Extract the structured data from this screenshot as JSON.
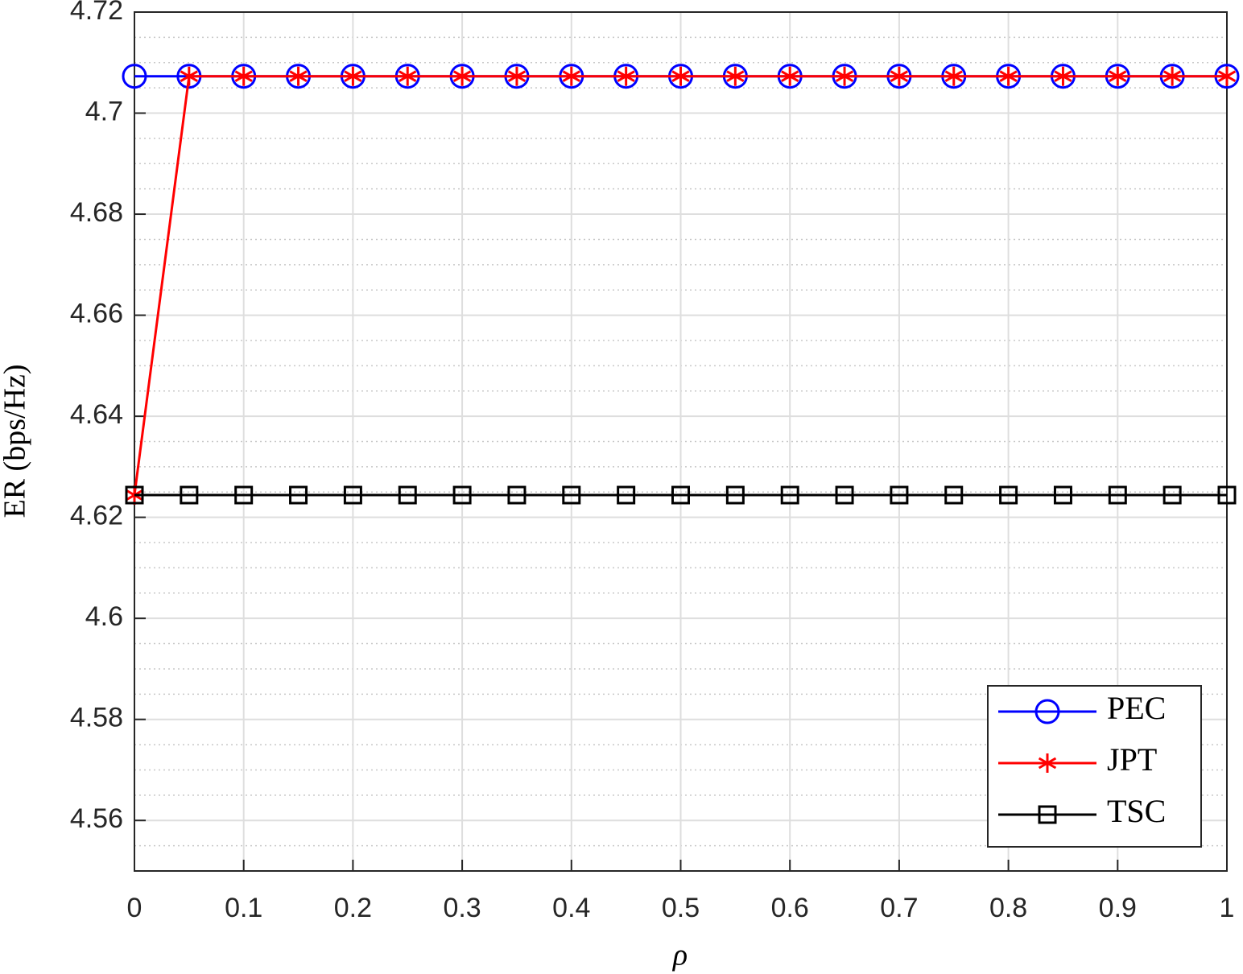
{
  "chart_data": {
    "type": "line",
    "x_label": "ρ",
    "y_label": "ER (bps/Hz)",
    "x": [
      0,
      0.05,
      0.1,
      0.15,
      0.2,
      0.25,
      0.3,
      0.35,
      0.4,
      0.45,
      0.5,
      0.55,
      0.6,
      0.65,
      0.7,
      0.75,
      0.8,
      0.85,
      0.9,
      0.95,
      1
    ],
    "series": [
      {
        "name": "PEC",
        "color": "#0000ff",
        "marker": "circle",
        "values": [
          4.7073,
          4.7073,
          4.7073,
          4.7073,
          4.7073,
          4.7073,
          4.7073,
          4.7073,
          4.7073,
          4.7073,
          4.7073,
          4.7073,
          4.7073,
          4.7073,
          4.7073,
          4.7073,
          4.7073,
          4.7073,
          4.7073,
          4.7073,
          4.7073
        ]
      },
      {
        "name": "JPT",
        "color": "#ff0000",
        "marker": "asterisk",
        "values": [
          4.6244,
          4.7073,
          4.7073,
          4.7073,
          4.7073,
          4.7073,
          4.7073,
          4.7073,
          4.7073,
          4.7073,
          4.7073,
          4.7073,
          4.7073,
          4.7073,
          4.7073,
          4.7073,
          4.7073,
          4.7073,
          4.7073,
          4.7073,
          4.7073
        ]
      },
      {
        "name": "TSC",
        "color": "#000000",
        "marker": "square",
        "values": [
          4.6244,
          4.6244,
          4.6244,
          4.6244,
          4.6244,
          4.6244,
          4.6244,
          4.6244,
          4.6244,
          4.6244,
          4.6244,
          4.6244,
          4.6244,
          4.6244,
          4.6244,
          4.6244,
          4.6244,
          4.6244,
          4.6244,
          4.6244,
          4.6244
        ]
      }
    ],
    "xlim": [
      0,
      1
    ],
    "xticks": [
      0,
      0.1,
      0.2,
      0.3,
      0.4,
      0.5,
      0.6,
      0.7,
      0.8,
      0.9,
      1
    ],
    "ylim": [
      4.55,
      4.72
    ],
    "yticks": [
      4.56,
      4.58,
      4.6,
      4.62,
      4.64,
      4.66,
      4.68,
      4.7,
      4.72
    ],
    "grid": true,
    "minor_grid": true,
    "legend": "southeast"
  }
}
